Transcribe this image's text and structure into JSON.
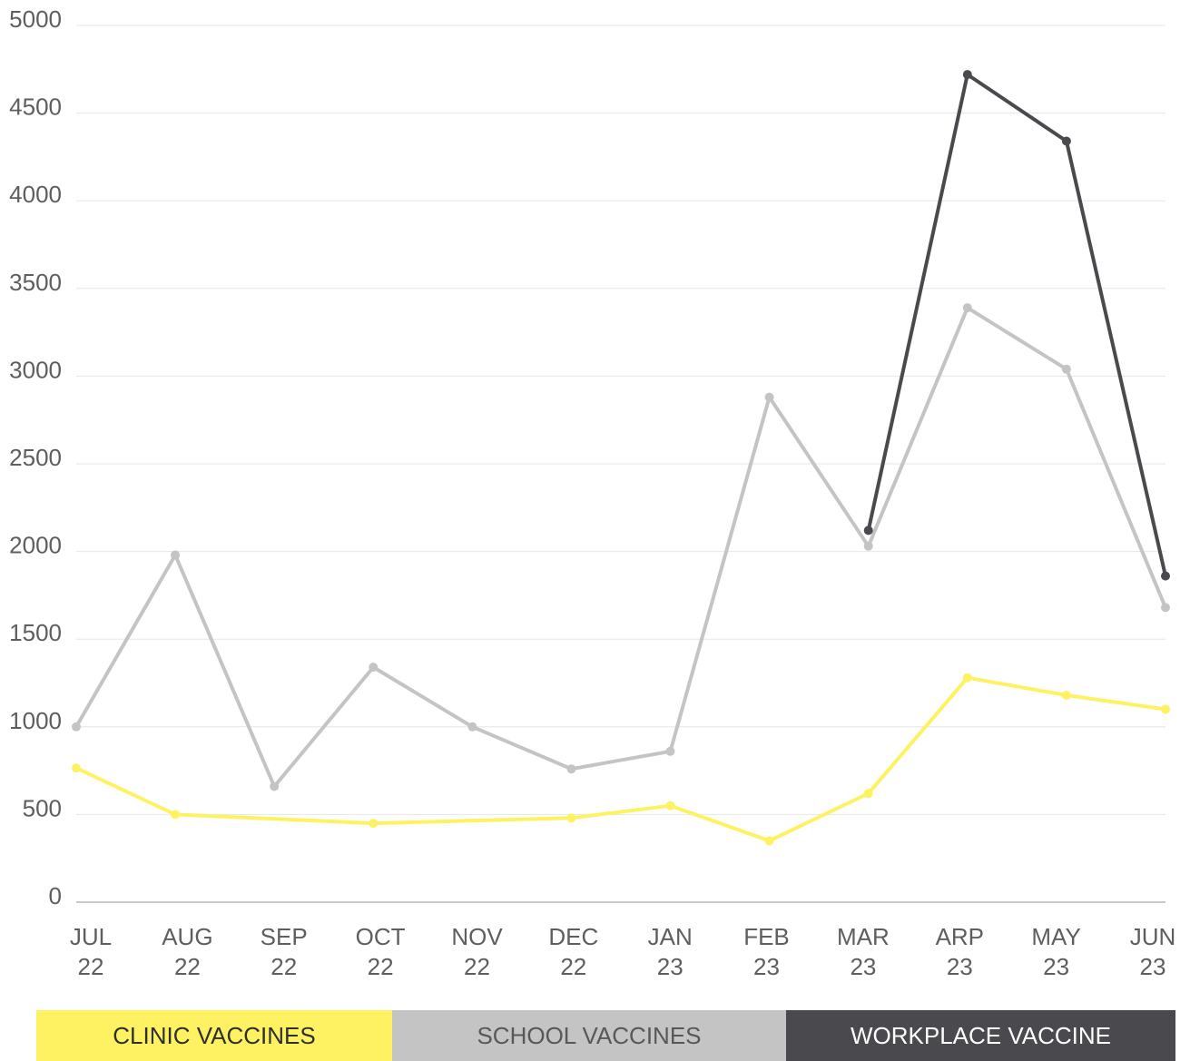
{
  "chart_data": {
    "type": "line",
    "categories": [
      {
        "month": "JUL",
        "year": "22"
      },
      {
        "month": "AUG",
        "year": "22"
      },
      {
        "month": "SEP",
        "year": "22"
      },
      {
        "month": "OCT",
        "year": "22"
      },
      {
        "month": "NOV",
        "year": "22"
      },
      {
        "month": "DEC",
        "year": "22"
      },
      {
        "month": "JAN",
        "year": "23"
      },
      {
        "month": "FEB",
        "year": "23"
      },
      {
        "month": "MAR",
        "year": "23"
      },
      {
        "month": "ARP",
        "year": "23"
      },
      {
        "month": "MAY",
        "year": "23"
      },
      {
        "month": "JUN",
        "year": "23"
      }
    ],
    "series": [
      {
        "name": "CLINIC VACCINES",
        "color": "#fef263",
        "values": [
          765,
          500,
          null,
          450,
          null,
          480,
          550,
          350,
          620,
          1280,
          1180,
          1100
        ]
      },
      {
        "name": "SCHOOL VACCINES",
        "color": "#c4c4c4",
        "values": [
          1000,
          1980,
          660,
          1340,
          1000,
          760,
          860,
          2880,
          2030,
          3390,
          3040,
          1680
        ]
      },
      {
        "name": "WORKPLACE VACCINE",
        "color": "#4a4a4e",
        "values": [
          null,
          null,
          null,
          null,
          null,
          null,
          null,
          null,
          2120,
          4720,
          4340,
          1860
        ]
      }
    ],
    "yticks": [
      0,
      500,
      1000,
      1500,
      2000,
      2500,
      3000,
      3500,
      4000,
      4500,
      5000
    ],
    "ylim": [
      0,
      5000
    ],
    "grid": true,
    "legend_position": "bottom"
  }
}
